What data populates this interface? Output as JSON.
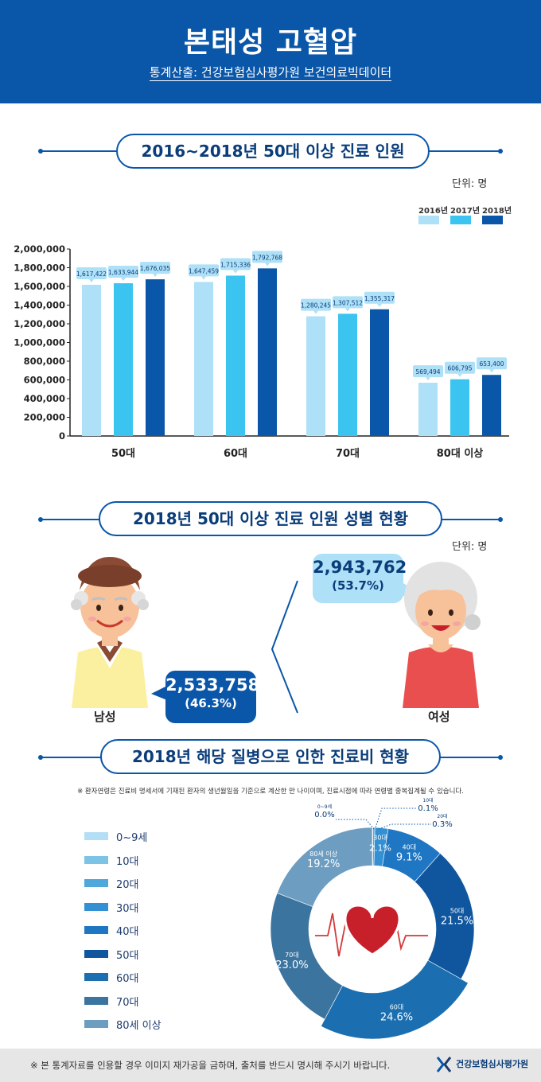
{
  "header": {
    "title": "본태성 고혈압",
    "source": "통계산출: 건강보험심사평가원 보건의료빅데이터"
  },
  "sections": {
    "s1_title": "2016~2018년 50대 이상 진료 인원",
    "s2_title": "2018년 50대 이상 진료 인원 성별 현황",
    "s3_title": "2018년 해당 질병으로 인한 진료비 현황"
  },
  "units": {
    "s1": "단위: 명",
    "s2": "단위: 명"
  },
  "colors": {
    "primary": "#0a56a8",
    "bar2016": "#aee0f7",
    "bar2017": "#3cc4f0",
    "bar2018": "#0a56a8"
  },
  "chart_data": [
    {
      "type": "bar",
      "categories": [
        "50대",
        "60대",
        "70대",
        "80대 이상"
      ],
      "series": [
        {
          "name": "2016년",
          "values": [
            1617422,
            1647459,
            1280245,
            569494
          ]
        },
        {
          "name": "2017년",
          "values": [
            1633944,
            1715336,
            1307512,
            606795
          ]
        },
        {
          "name": "2018년",
          "values": [
            1676035,
            1792768,
            1355317,
            653400
          ]
        }
      ],
      "value_labels": [
        [
          "1,617,422",
          "1,647,459",
          "1,280,245",
          "569,494"
        ],
        [
          "1,633,944",
          "1,715,336",
          "1,307,512",
          "606,795"
        ],
        [
          "1,676,035",
          "1,792,768",
          "1,355,317",
          "653,400"
        ]
      ],
      "ylim": [
        0,
        2000000
      ],
      "yticks": [
        0,
        200000,
        400000,
        600000,
        800000,
        1000000,
        1200000,
        1400000,
        1600000,
        1800000,
        2000000
      ],
      "ytick_labels": [
        "0",
        "200,000",
        "400,000",
        "600,000",
        "800,000",
        "1,000,000",
        "1,200,000",
        "1,400,000",
        "1,600,000",
        "1,800,000",
        "2,000,000"
      ],
      "legend_position": "top-right",
      "grid": false
    },
    {
      "type": "pie",
      "labels": [
        "0~9세",
        "10대",
        "20대",
        "30대",
        "40대",
        "50대",
        "60대",
        "70대",
        "80세 이상"
      ],
      "values": [
        0.0,
        0.1,
        0.3,
        2.1,
        9.1,
        21.5,
        24.6,
        23.0,
        19.2
      ],
      "value_labels": [
        "0.0%",
        "0.1%",
        "0.3%",
        "2.1%",
        "9.1%",
        "21.5%",
        "24.6%",
        "23.0%",
        "19.2%"
      ],
      "colors": [
        "#b3def5",
        "#7cc3e6",
        "#4fa7dc",
        "#3390d3",
        "#1f76c2",
        "#10569f",
        "#1b6fb0",
        "#3c74a0",
        "#6d9dc0"
      ],
      "legend_position": "left"
    }
  ],
  "gender": {
    "male": {
      "label": "남성",
      "value": "2,533,758",
      "pct": "(46.3%)"
    },
    "female": {
      "label": "여성",
      "value": "2,943,762",
      "pct": "(53.7%)"
    }
  },
  "pie_note": "※ 환자연령은 진료비 명세서에 기재된 환자의 생년월일을 기준으로 계산한 만 나이이며, 진료시점에 따라 연령별 중복집계될 수 있습니다.",
  "footer": {
    "notice": "※ 본 통계자료를 인용할 경우 이미지 재가공을 금하며, 출처를 반드시 명시해 주시기 바랍니다.",
    "org": "건강보험심사평가원"
  }
}
